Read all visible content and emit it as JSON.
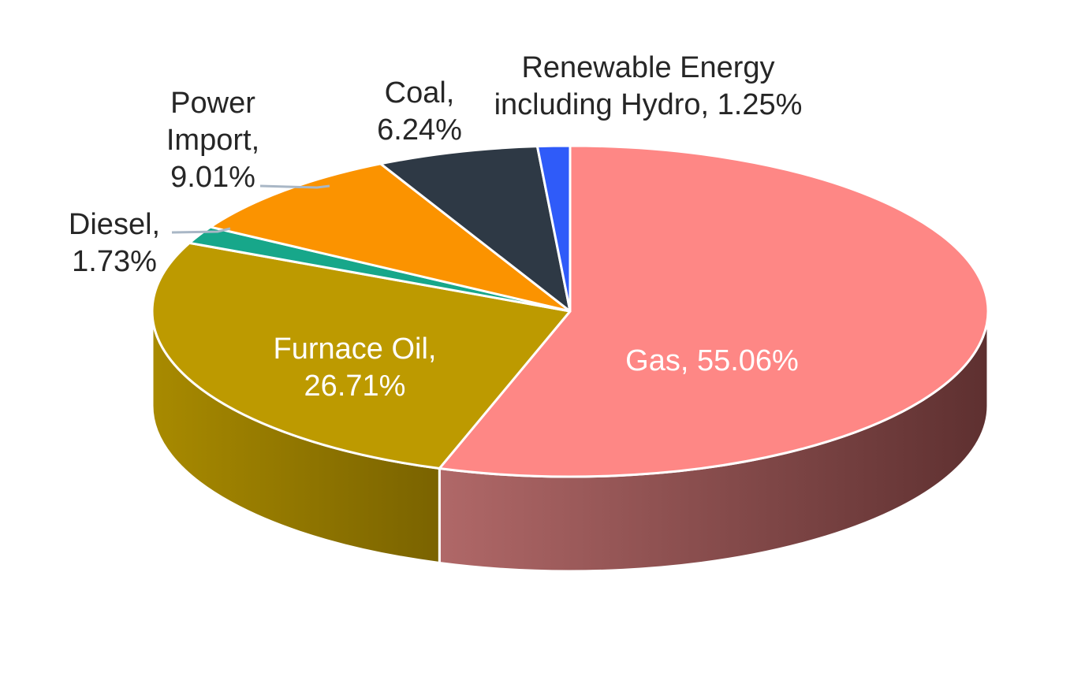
{
  "chart_data": {
    "type": "pie",
    "style": "3d",
    "title": "",
    "legend": "none",
    "categories": [
      "Gas",
      "Furnace Oil",
      "Diesel",
      "Power Import",
      "Coal",
      "Renewable Energy including Hydro"
    ],
    "values": [
      55.06,
      26.71,
      1.73,
      9.01,
      6.24,
      1.25
    ],
    "unit": "%",
    "colors": [
      "#fe8785",
      "#bd9a00",
      "#17a78a",
      "#fb9300",
      "#2e3945",
      "#2f5bf9"
    ],
    "side_colors": [
      "#9a5656",
      "#8f7400"
    ],
    "data_labels": [
      [
        "Gas, 55.06%"
      ],
      [
        "Furnace Oil,",
        "26.71%"
      ],
      [
        "Diesel,",
        "1.73%"
      ],
      [
        "Power",
        "Import,",
        "9.01%"
      ],
      [
        "Coal,",
        "6.24%"
      ],
      [
        "Renewable Energy",
        "including Hydro, 1.25%"
      ]
    ],
    "label_colors": [
      "#ffffff",
      "#ffffff",
      "#262626",
      "#262626",
      "#262626",
      "#262626"
    ]
  }
}
